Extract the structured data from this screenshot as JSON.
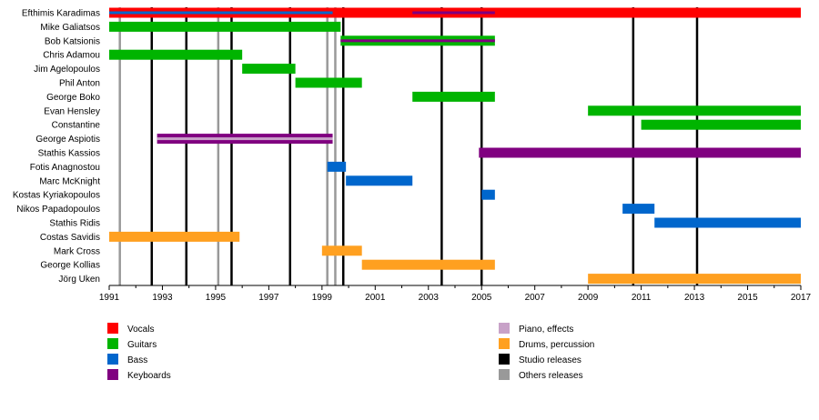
{
  "chart_data": {
    "type": "timeline",
    "title": "",
    "xlabel": "",
    "ylabel": "",
    "xlim": [
      1991,
      2017
    ],
    "x_ticks": [
      "1991",
      "1993",
      "1995",
      "1997",
      "1999",
      "2001",
      "2003",
      "2005",
      "2007",
      "2009",
      "2011",
      "2013",
      "2015",
      "2017"
    ],
    "x_tick_values": [
      1991,
      1993,
      1995,
      1997,
      1999,
      2001,
      2003,
      2005,
      2007,
      2009,
      2011,
      2013,
      2015,
      2017
    ],
    "colors": {
      "vocals": "#ff0000",
      "guitars": "#00b400",
      "bass": "#0066cc",
      "keyboards": "#800080",
      "piano": "#c8a2c8",
      "drums": "#ffa020",
      "studio": "#000000",
      "others": "#999999"
    },
    "members": [
      {
        "name": "Efthimis Karadimas",
        "bars": [
          {
            "role": "vocals",
            "start": 1991,
            "end": 2017
          },
          {
            "role": "guitars",
            "start": 1991,
            "end": 1996,
            "thin": true
          },
          {
            "role": "bass",
            "start": 1991,
            "end": 1999.4,
            "thin": true
          },
          {
            "role": "keyboards",
            "start": 2002.4,
            "end": 2005.5,
            "thin": true
          }
        ]
      },
      {
        "name": "Mike Galiatsos",
        "bars": [
          {
            "role": "guitars",
            "start": 1991,
            "end": 1999.7
          }
        ]
      },
      {
        "name": "Bob Katsionis",
        "bars": [
          {
            "role": "guitars",
            "start": 1999.7,
            "end": 2005.5
          },
          {
            "role": "keyboards",
            "start": 1999.7,
            "end": 2005.5,
            "thin": true
          }
        ]
      },
      {
        "name": "Chris Adamou",
        "bars": [
          {
            "role": "guitars",
            "start": 1991,
            "end": 1996
          }
        ]
      },
      {
        "name": "Jim Agelopoulos",
        "bars": [
          {
            "role": "guitars",
            "start": 1996,
            "end": 1998
          }
        ]
      },
      {
        "name": "Phil Anton",
        "bars": [
          {
            "role": "guitars",
            "start": 1998,
            "end": 2000.5
          }
        ]
      },
      {
        "name": "George Boko",
        "bars": [
          {
            "role": "guitars",
            "start": 2002.4,
            "end": 2005.5
          }
        ]
      },
      {
        "name": "Evan Hensley",
        "bars": [
          {
            "role": "guitars",
            "start": 2009,
            "end": 2017
          }
        ]
      },
      {
        "name": "Constantine",
        "bars": [
          {
            "role": "guitars",
            "start": 2011,
            "end": 2017
          }
        ]
      },
      {
        "name": "George Aspiotis",
        "bars": [
          {
            "role": "keyboards",
            "start": 1992.8,
            "end": 1999.4
          },
          {
            "role": "piano",
            "start": 1992.8,
            "end": 1999.4,
            "thin": true
          }
        ]
      },
      {
        "name": "Stathis Kassios",
        "bars": [
          {
            "role": "keyboards",
            "start": 2004.9,
            "end": 2017
          }
        ]
      },
      {
        "name": "Fotis Anagnostou",
        "bars": [
          {
            "role": "bass",
            "start": 1999.2,
            "end": 1999.9
          }
        ]
      },
      {
        "name": "Marc McKnight",
        "bars": [
          {
            "role": "bass",
            "start": 1999.9,
            "end": 2002.4
          }
        ]
      },
      {
        "name": "Kostas Kyriakopoulos",
        "bars": [
          {
            "role": "bass",
            "start": 2005,
            "end": 2005.5
          }
        ]
      },
      {
        "name": "Nikos Papadopoulos",
        "bars": [
          {
            "role": "bass",
            "start": 2010.3,
            "end": 2011.5
          }
        ]
      },
      {
        "name": "Stathis Ridis",
        "bars": [
          {
            "role": "bass",
            "start": 2011.5,
            "end": 2017
          }
        ]
      },
      {
        "name": "Costas Savidis",
        "bars": [
          {
            "role": "drums",
            "start": 1991,
            "end": 1995.9
          }
        ]
      },
      {
        "name": "Mark Cross",
        "bars": [
          {
            "role": "drums",
            "start": 1999,
            "end": 2000.5
          }
        ]
      },
      {
        "name": "George Kollias",
        "bars": [
          {
            "role": "drums",
            "start": 2000.5,
            "end": 2005.5
          }
        ]
      },
      {
        "name": "Jörg Uken",
        "bars": [
          {
            "role": "drums",
            "start": 2009,
            "end": 2017
          }
        ]
      }
    ],
    "studio_releases": [
      1992.6,
      1993.9,
      1995.6,
      1997.8,
      1999.8,
      2003.5,
      2005,
      2010.7,
      2013.1
    ],
    "other_releases": [
      1991.4,
      1995.1,
      1999.2,
      1999.5
    ],
    "legend": [
      {
        "key": "vocals",
        "label": "Vocals"
      },
      {
        "key": "guitars",
        "label": "Guitars"
      },
      {
        "key": "bass",
        "label": "Bass"
      },
      {
        "key": "keyboards",
        "label": "Keyboards"
      },
      {
        "key": "piano",
        "label": "Piano, effects"
      },
      {
        "key": "drums",
        "label": "Drums, percussion"
      },
      {
        "key": "studio",
        "label": "Studio releases"
      },
      {
        "key": "others",
        "label": "Others releases"
      }
    ]
  }
}
